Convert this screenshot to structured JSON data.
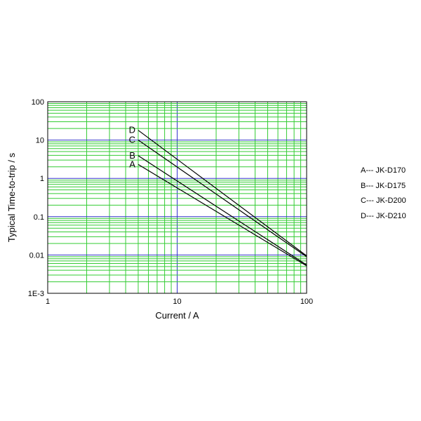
{
  "chart_data": {
    "type": "line",
    "xlabel": "Current / A",
    "ylabel": "Typical Time-to-trip / s",
    "x_scale": "log",
    "y_scale": "log",
    "xlim": [
      1,
      100
    ],
    "ylim": [
      0.001,
      100
    ],
    "x_ticks": [
      {
        "value": 1,
        "label": "1"
      },
      {
        "value": 10,
        "label": "10"
      },
      {
        "value": 100,
        "label": "100"
      }
    ],
    "y_ticks": [
      {
        "value": 0.001,
        "label": "1E-3"
      },
      {
        "value": 0.01,
        "label": "0.01"
      },
      {
        "value": 0.1,
        "label": "0.1"
      },
      {
        "value": 1,
        "label": "1"
      },
      {
        "value": 10,
        "label": "10"
      },
      {
        "value": 100,
        "label": "100"
      }
    ],
    "grid": true,
    "grid_color": "#33cc33",
    "highlight_gridline_color": "#3333cc",
    "line_color": "#000000",
    "series": [
      {
        "name": "A",
        "x": [
          5,
          100
        ],
        "y": [
          2.3,
          0.0052
        ]
      },
      {
        "name": "B",
        "x": [
          5,
          100
        ],
        "y": [
          3.9,
          0.0055
        ]
      },
      {
        "name": "C",
        "x": [
          5,
          100
        ],
        "y": [
          10,
          0.009
        ]
      },
      {
        "name": "D",
        "x": [
          5,
          100
        ],
        "y": [
          18,
          0.0095
        ]
      }
    ],
    "legend": [
      {
        "key": "A",
        "text": "A--- JK-D170"
      },
      {
        "key": "B",
        "text": "B--- JK-D175"
      },
      {
        "key": "C",
        "text": "C--- JK-D200"
      },
      {
        "key": "D",
        "text": "D--- JK-D210"
      }
    ],
    "legend_position": "right"
  }
}
